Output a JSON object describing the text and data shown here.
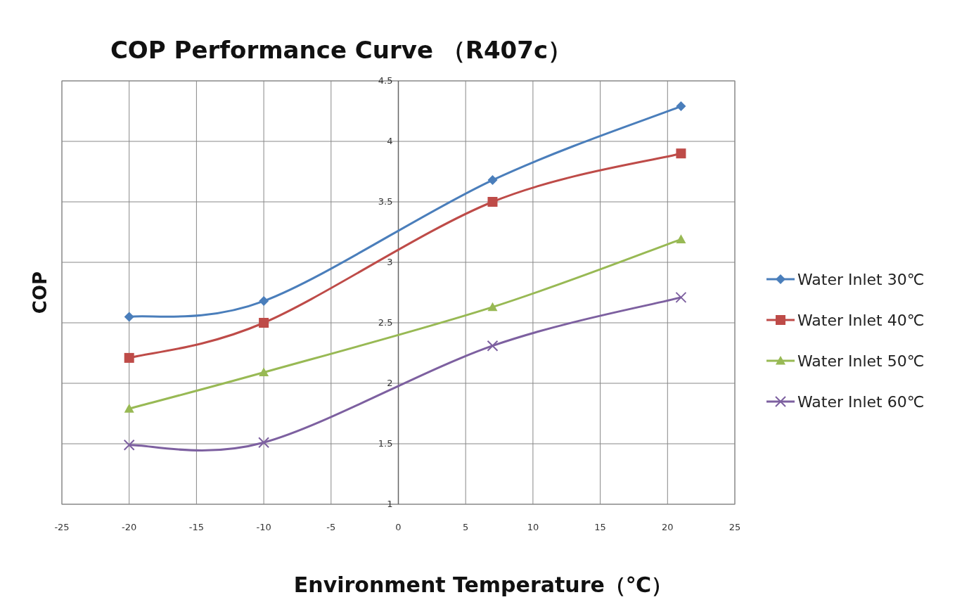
{
  "chart_data": {
    "type": "line",
    "title": "COP Performance Curve （R407c）",
    "xlabel": "Environment Temperature（℃）",
    "ylabel": "COP",
    "x": [
      -20,
      -10,
      7,
      21
    ],
    "xlim": [
      -25,
      25
    ],
    "xticks": [
      -25,
      -20,
      -15,
      -10,
      -5,
      0,
      5,
      10,
      15,
      20,
      25
    ],
    "ylim": [
      1,
      4.5
    ],
    "yticks": [
      1,
      1.5,
      2,
      2.5,
      3,
      3.5,
      4,
      4.5
    ],
    "grid": true,
    "legend": "right",
    "line_style": "solid",
    "series": [
      {
        "name": "Water Inlet 30℃",
        "color": "#4a7ebb",
        "marker": "diamond",
        "values": [
          2.55,
          2.68,
          3.68,
          4.29
        ]
      },
      {
        "name": "Water Inlet 40℃",
        "color": "#be4b48",
        "marker": "square",
        "values": [
          2.21,
          2.5,
          3.5,
          3.9
        ]
      },
      {
        "name": "Water Inlet 50℃",
        "color": "#98b954",
        "marker": "triangle",
        "values": [
          1.79,
          2.09,
          2.63,
          3.19
        ]
      },
      {
        "name": "Water Inlet 60℃",
        "color": "#7d60a0",
        "marker": "cross",
        "values": [
          1.49,
          1.51,
          2.31,
          2.71
        ]
      }
    ]
  }
}
